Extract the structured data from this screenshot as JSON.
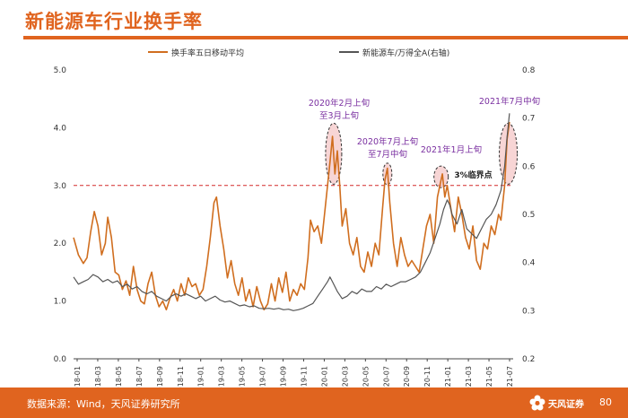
{
  "page": {
    "title": "新能源车行业换手率",
    "source": "数据来源：Wind，天风证券研究所",
    "logo_text": "天风证券",
    "page_number": "80"
  },
  "colors": {
    "accent": "#e0641f",
    "turnover_line": "#d06e1f",
    "index_line": "#555555",
    "threshold": "#d42a2a",
    "annotation_text": "#7a2fa0",
    "highlight_fill": "#f2b9b9"
  },
  "chart_data": {
    "type": "line",
    "legend": [
      "换手率五日移动平均",
      "新能源车/万得全A(右轴)"
    ],
    "legend_position": "top",
    "x_tick_labels": [
      "2018-01",
      "2018-03",
      "2018-05",
      "2018-07",
      "2018-09",
      "2018-11",
      "2019-01",
      "2019-03",
      "2019-05",
      "2019-07",
      "2019-09",
      "2019-11",
      "2020-01",
      "2020-03",
      "2020-05",
      "2020-07",
      "2020-09",
      "2020-11",
      "2021-01",
      "2021-03",
      "2021-05",
      "2021-07"
    ],
    "y_left": {
      "min": 0.0,
      "max": 5.0,
      "ticks": [
        "0.0",
        "1.0",
        "2.0",
        "3.0",
        "4.0",
        "5.0"
      ]
    },
    "y_right": {
      "min": 0.2,
      "max": 0.8,
      "ticks": [
        "0.2",
        "0.3",
        "0.4",
        "0.5",
        "0.6",
        "0.7",
        "0.8"
      ]
    },
    "grid": false,
    "threshold": {
      "value": 3.0,
      "label": "3%临界点"
    },
    "series": [
      {
        "name": "换手率五日移动平均",
        "axis": "left",
        "points": [
          [
            2018.0,
            2.1
          ],
          [
            2018.04,
            1.8
          ],
          [
            2018.08,
            1.65
          ],
          [
            2018.11,
            1.75
          ],
          [
            2018.14,
            2.2
          ],
          [
            2018.17,
            2.55
          ],
          [
            2018.2,
            2.3
          ],
          [
            2018.23,
            1.8
          ],
          [
            2018.26,
            2.0
          ],
          [
            2018.28,
            2.45
          ],
          [
            2018.31,
            2.1
          ],
          [
            2018.34,
            1.5
          ],
          [
            2018.37,
            1.45
          ],
          [
            2018.4,
            1.2
          ],
          [
            2018.43,
            1.35
          ],
          [
            2018.46,
            1.1
          ],
          [
            2018.49,
            1.6
          ],
          [
            2018.52,
            1.2
          ],
          [
            2018.55,
            1.0
          ],
          [
            2018.58,
            0.95
          ],
          [
            2018.61,
            1.3
          ],
          [
            2018.64,
            1.5
          ],
          [
            2018.67,
            1.1
          ],
          [
            2018.7,
            0.9
          ],
          [
            2018.73,
            1.0
          ],
          [
            2018.76,
            0.85
          ],
          [
            2018.79,
            1.05
          ],
          [
            2018.82,
            1.2
          ],
          [
            2018.85,
            1.0
          ],
          [
            2018.88,
            1.3
          ],
          [
            2018.91,
            1.1
          ],
          [
            2018.94,
            1.4
          ],
          [
            2018.97,
            1.25
          ],
          [
            2019.0,
            1.3
          ],
          [
            2019.03,
            1.1
          ],
          [
            2019.06,
            1.2
          ],
          [
            2019.09,
            1.6
          ],
          [
            2019.12,
            2.1
          ],
          [
            2019.15,
            2.7
          ],
          [
            2019.17,
            2.8
          ],
          [
            2019.2,
            2.3
          ],
          [
            2019.23,
            1.9
          ],
          [
            2019.26,
            1.4
          ],
          [
            2019.29,
            1.7
          ],
          [
            2019.32,
            1.3
          ],
          [
            2019.35,
            1.1
          ],
          [
            2019.38,
            1.4
          ],
          [
            2019.41,
            1.0
          ],
          [
            2019.44,
            1.2
          ],
          [
            2019.47,
            0.9
          ],
          [
            2019.5,
            1.25
          ],
          [
            2019.53,
            1.0
          ],
          [
            2019.56,
            0.85
          ],
          [
            2019.59,
            0.95
          ],
          [
            2019.62,
            1.3
          ],
          [
            2019.65,
            1.0
          ],
          [
            2019.68,
            1.4
          ],
          [
            2019.71,
            1.15
          ],
          [
            2019.74,
            1.5
          ],
          [
            2019.77,
            1.0
          ],
          [
            2019.8,
            1.2
          ],
          [
            2019.83,
            1.1
          ],
          [
            2019.86,
            1.3
          ],
          [
            2019.89,
            1.2
          ],
          [
            2019.92,
            1.75
          ],
          [
            2019.94,
            2.4
          ],
          [
            2019.97,
            2.2
          ],
          [
            2020.0,
            2.3
          ],
          [
            2020.03,
            2.0
          ],
          [
            2020.06,
            2.6
          ],
          [
            2020.08,
            3.0
          ],
          [
            2020.1,
            3.4
          ],
          [
            2020.12,
            3.85
          ],
          [
            2020.14,
            3.2
          ],
          [
            2020.16,
            3.6
          ],
          [
            2020.18,
            3.0
          ],
          [
            2020.2,
            2.3
          ],
          [
            2020.23,
            2.6
          ],
          [
            2020.26,
            2.0
          ],
          [
            2020.29,
            1.8
          ],
          [
            2020.32,
            2.1
          ],
          [
            2020.35,
            1.6
          ],
          [
            2020.38,
            1.5
          ],
          [
            2020.41,
            1.85
          ],
          [
            2020.44,
            1.6
          ],
          [
            2020.47,
            2.0
          ],
          [
            2020.5,
            1.8
          ],
          [
            2020.53,
            2.6
          ],
          [
            2020.55,
            3.1
          ],
          [
            2020.57,
            3.3
          ],
          [
            2020.59,
            2.7
          ],
          [
            2020.62,
            2.0
          ],
          [
            2020.65,
            1.6
          ],
          [
            2020.68,
            2.1
          ],
          [
            2020.71,
            1.8
          ],
          [
            2020.74,
            1.6
          ],
          [
            2020.77,
            1.7
          ],
          [
            2020.8,
            1.6
          ],
          [
            2020.83,
            1.5
          ],
          [
            2020.86,
            1.9
          ],
          [
            2020.89,
            2.3
          ],
          [
            2020.92,
            2.5
          ],
          [
            2020.95,
            2.0
          ],
          [
            2020.98,
            2.8
          ],
          [
            2021.0,
            3.0
          ],
          [
            2021.02,
            3.2
          ],
          [
            2021.04,
            2.8
          ],
          [
            2021.06,
            3.0
          ],
          [
            2021.09,
            2.6
          ],
          [
            2021.12,
            2.2
          ],
          [
            2021.15,
            2.8
          ],
          [
            2021.18,
            2.5
          ],
          [
            2021.21,
            2.1
          ],
          [
            2021.24,
            1.9
          ],
          [
            2021.27,
            2.3
          ],
          [
            2021.3,
            1.7
          ],
          [
            2021.33,
            1.55
          ],
          [
            2021.36,
            2.0
          ],
          [
            2021.39,
            1.9
          ],
          [
            2021.42,
            2.3
          ],
          [
            2021.45,
            2.15
          ],
          [
            2021.48,
            2.5
          ],
          [
            2021.5,
            2.4
          ],
          [
            2021.53,
            3.0
          ],
          [
            2021.55,
            3.8
          ],
          [
            2021.57,
            4.1
          ]
        ]
      },
      {
        "name": "新能源车/万得全A(右轴)",
        "axis": "right",
        "points": [
          [
            2018.0,
            0.37
          ],
          [
            2018.04,
            0.355
          ],
          [
            2018.08,
            0.36
          ],
          [
            2018.12,
            0.365
          ],
          [
            2018.16,
            0.375
          ],
          [
            2018.2,
            0.37
          ],
          [
            2018.24,
            0.36
          ],
          [
            2018.28,
            0.365
          ],
          [
            2018.32,
            0.358
          ],
          [
            2018.36,
            0.362
          ],
          [
            2018.4,
            0.35
          ],
          [
            2018.44,
            0.355
          ],
          [
            2018.48,
            0.345
          ],
          [
            2018.52,
            0.35
          ],
          [
            2018.56,
            0.34
          ],
          [
            2018.6,
            0.335
          ],
          [
            2018.64,
            0.34
          ],
          [
            2018.68,
            0.33
          ],
          [
            2018.72,
            0.325
          ],
          [
            2018.76,
            0.32
          ],
          [
            2018.8,
            0.33
          ],
          [
            2018.84,
            0.335
          ],
          [
            2018.88,
            0.33
          ],
          [
            2018.92,
            0.335
          ],
          [
            2018.96,
            0.33
          ],
          [
            2019.0,
            0.325
          ],
          [
            2019.04,
            0.33
          ],
          [
            2019.08,
            0.32
          ],
          [
            2019.12,
            0.325
          ],
          [
            2019.16,
            0.33
          ],
          [
            2019.2,
            0.322
          ],
          [
            2019.24,
            0.318
          ],
          [
            2019.28,
            0.32
          ],
          [
            2019.32,
            0.315
          ],
          [
            2019.36,
            0.31
          ],
          [
            2019.4,
            0.312
          ],
          [
            2019.44,
            0.308
          ],
          [
            2019.48,
            0.31
          ],
          [
            2019.52,
            0.305
          ],
          [
            2019.56,
            0.304
          ],
          [
            2019.6,
            0.305
          ],
          [
            2019.64,
            0.303
          ],
          [
            2019.68,
            0.305
          ],
          [
            2019.72,
            0.302
          ],
          [
            2019.76,
            0.303
          ],
          [
            2019.8,
            0.3
          ],
          [
            2019.84,
            0.302
          ],
          [
            2019.88,
            0.305
          ],
          [
            2019.92,
            0.31
          ],
          [
            2019.96,
            0.315
          ],
          [
            2020.0,
            0.33
          ],
          [
            2020.04,
            0.345
          ],
          [
            2020.08,
            0.36
          ],
          [
            2020.1,
            0.37
          ],
          [
            2020.12,
            0.36
          ],
          [
            2020.16,
            0.34
          ],
          [
            2020.2,
            0.325
          ],
          [
            2020.24,
            0.33
          ],
          [
            2020.28,
            0.34
          ],
          [
            2020.32,
            0.335
          ],
          [
            2020.36,
            0.345
          ],
          [
            2020.4,
            0.34
          ],
          [
            2020.44,
            0.34
          ],
          [
            2020.48,
            0.35
          ],
          [
            2020.52,
            0.345
          ],
          [
            2020.56,
            0.355
          ],
          [
            2020.6,
            0.35
          ],
          [
            2020.64,
            0.355
          ],
          [
            2020.68,
            0.36
          ],
          [
            2020.72,
            0.36
          ],
          [
            2020.76,
            0.365
          ],
          [
            2020.8,
            0.37
          ],
          [
            2020.84,
            0.38
          ],
          [
            2020.88,
            0.4
          ],
          [
            2020.92,
            0.42
          ],
          [
            2020.96,
            0.45
          ],
          [
            2021.0,
            0.48
          ],
          [
            2021.03,
            0.51
          ],
          [
            2021.06,
            0.53
          ],
          [
            2021.08,
            0.52
          ],
          [
            2021.1,
            0.5
          ],
          [
            2021.14,
            0.48
          ],
          [
            2021.18,
            0.51
          ],
          [
            2021.22,
            0.47
          ],
          [
            2021.26,
            0.46
          ],
          [
            2021.3,
            0.45
          ],
          [
            2021.34,
            0.47
          ],
          [
            2021.38,
            0.49
          ],
          [
            2021.42,
            0.5
          ],
          [
            2021.46,
            0.52
          ],
          [
            2021.5,
            0.55
          ],
          [
            2021.53,
            0.6
          ],
          [
            2021.55,
            0.66
          ],
          [
            2021.57,
            0.71
          ]
        ]
      }
    ],
    "annotations": [
      {
        "text": [
          "2020年2月上旬",
          "至3月上旬"
        ],
        "x": 2020.12,
        "y": 3.2
      },
      {
        "text": [
          "2020年7月上旬",
          "至7月中旬"
        ],
        "x": 2020.56,
        "y": 3.2
      },
      {
        "text": [
          "2021年1月上旬"
        ],
        "x": 2021.01,
        "y": 3.1
      },
      {
        "text": [
          "2021年7月中旬"
        ],
        "x": 2021.56,
        "y": 3.6
      }
    ]
  }
}
